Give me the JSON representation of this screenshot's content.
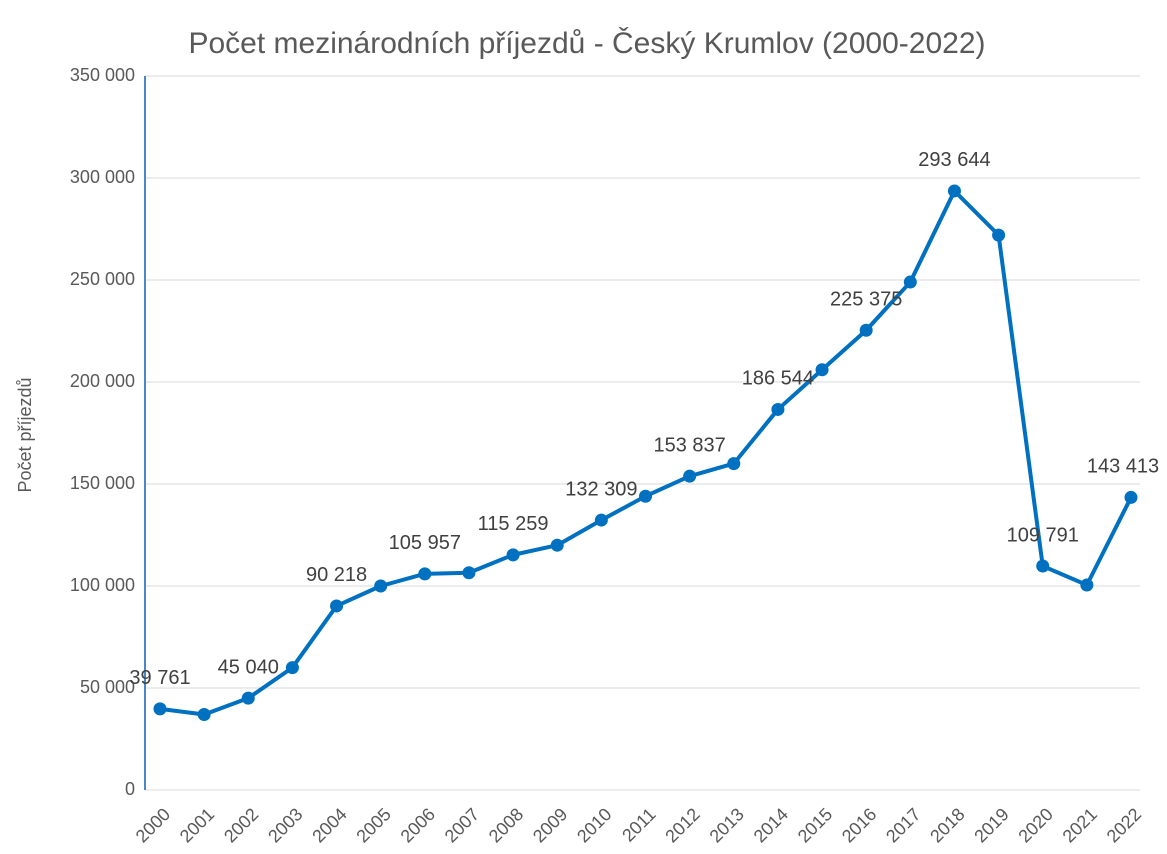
{
  "chart_data": {
    "type": "line",
    "title": "Počet mezinárodních příjezdů - Český Krumlov (2000-2022)",
    "y_label": "Počet  příjezdů",
    "categories": [
      "2000",
      "2001",
      "2002",
      "2003",
      "2004",
      "2005",
      "2006",
      "2007",
      "2008",
      "2009",
      "2010",
      "2011",
      "2012",
      "2013",
      "2014",
      "2015",
      "2016",
      "2017",
      "2018",
      "2019",
      "2020",
      "2021",
      "2022"
    ],
    "series": [
      {
        "name": "Počet příjezdů",
        "color": "#0070c0",
        "values": [
          39761,
          37000,
          45040,
          60000,
          90218,
          100000,
          105957,
          106500,
          115259,
          120000,
          132309,
          144000,
          153837,
          160000,
          186544,
          206000,
          225375,
          249000,
          293644,
          272000,
          109791,
          100500,
          143413
        ],
        "value_labels": [
          "39 761",
          null,
          "45 040",
          null,
          "90 218",
          null,
          "105 957",
          null,
          "115 259",
          null,
          "132 309",
          null,
          "153 837",
          null,
          "186 544",
          null,
          "225 375",
          null,
          "293 644",
          null,
          "109 791",
          null,
          "143 413"
        ]
      }
    ],
    "ylim": [
      0,
      350000
    ],
    "yticks": [
      0,
      {
        "value": 50000,
        "label": "50 000"
      },
      {
        "value": 100000,
        "label": "100 000"
      },
      {
        "value": 150000,
        "label": "150 000"
      },
      {
        "value": 200000,
        "label": "200 000"
      },
      {
        "value": 250000,
        "label": "250 000"
      },
      {
        "value": 300000,
        "label": "300 000"
      },
      {
        "value": 350000,
        "label": "350 000"
      }
    ],
    "grid": true
  }
}
